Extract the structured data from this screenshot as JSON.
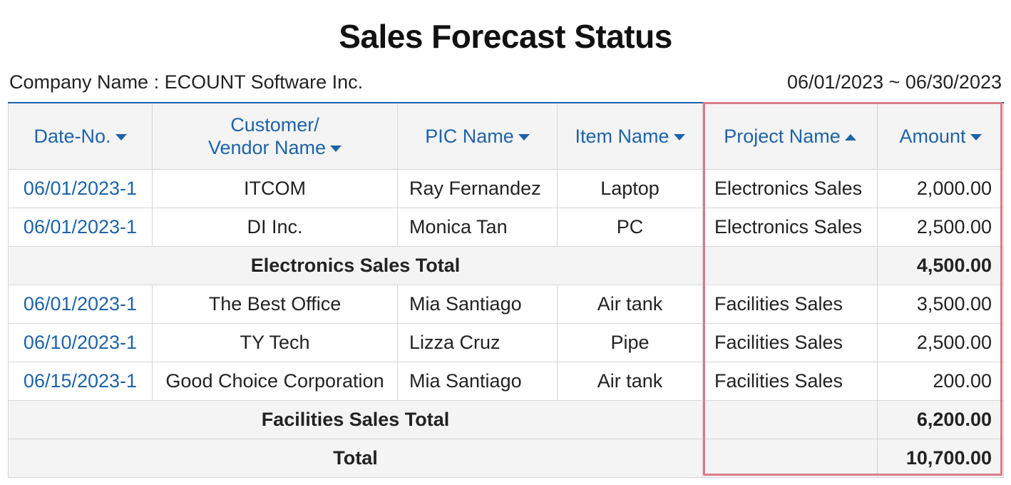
{
  "report": {
    "title": "Sales Forecast Status",
    "company_label": "Company Name : ECOUNT Software Inc.",
    "period": "06/01/2023 ~ 06/30/2023"
  },
  "columns": [
    {
      "label": "Date-No.",
      "sort": "down-caret-icon"
    },
    {
      "label_line1": "Customer/",
      "label_line2": "Vendor Name",
      "sort": "down-caret-icon"
    },
    {
      "label": "PIC Name",
      "sort": "down-caret-icon"
    },
    {
      "label": "Item Name",
      "sort": "down-caret-icon"
    },
    {
      "label": "Project Name",
      "sort": "up-caret-icon"
    },
    {
      "label": "Amount",
      "sort": "down-caret-icon"
    }
  ],
  "rows": [
    {
      "date": "06/01/2023-1",
      "customer": "ITCOM",
      "pic": "Ray Fernandez",
      "item": "Laptop",
      "project": "Electronics Sales",
      "amount": "2,000.00"
    },
    {
      "date": "06/01/2023-1",
      "customer": "DI Inc.",
      "pic": "Monica Tan",
      "item": "PC",
      "project": "Electronics Sales",
      "amount": "2,500.00"
    },
    {
      "subtotal_label": "Electronics Sales Total",
      "subtotal_amount": "4,500.00"
    },
    {
      "date": "06/01/2023-1",
      "customer": "The Best Office",
      "pic": "Mia Santiago",
      "item": "Air tank",
      "project": "Facilities Sales",
      "amount": "3,500.00"
    },
    {
      "date": "06/10/2023-1",
      "customer": "TY Tech",
      "pic": "Lizza Cruz",
      "item": "Pipe",
      "project": "Facilities Sales",
      "amount": "2,500.00"
    },
    {
      "date": "06/15/2023-1",
      "customer": "Good Choice Corporation",
      "pic": "Mia Santiago",
      "item": "Air tank",
      "project": "Facilities Sales",
      "amount": "200.00"
    },
    {
      "subtotal_label": "Facilities Sales Total",
      "subtotal_amount": "6,200.00"
    },
    {
      "subtotal_label": "Total",
      "subtotal_amount": "10,700.00"
    }
  ],
  "colors": {
    "header_text": "#1e63a8",
    "highlight_border": "#d97c88",
    "subtotal_bg": "#f4f4f4"
  }
}
